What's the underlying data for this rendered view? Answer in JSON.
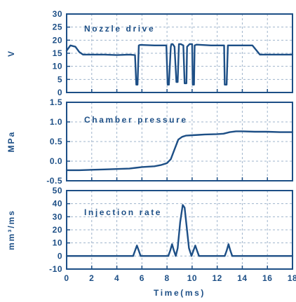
{
  "chart_data": [
    {
      "type": "line",
      "annotation": "Nozzle drive",
      "ylabel": "V",
      "xlabel": "",
      "xlim": [
        0,
        18
      ],
      "ylim": [
        0,
        30
      ],
      "yticks": [
        0,
        5,
        10,
        15,
        20,
        25,
        30
      ],
      "grid": true,
      "series": [
        {
          "x": [
            0,
            0.3,
            0.7,
            1.0,
            1.3,
            2.0,
            3.0,
            4.0,
            5.0,
            5.45,
            5.55,
            5.65,
            5.75,
            5.85,
            7.0,
            7.95,
            8.05,
            8.15,
            8.3,
            8.35,
            8.45,
            8.6,
            8.75,
            8.85,
            8.95,
            9.1,
            9.3,
            9.4,
            9.55,
            9.6,
            9.8,
            10.0,
            10.05,
            10.15,
            10.2,
            10.35,
            11.5,
            12.55,
            12.6,
            12.75,
            12.85,
            12.9,
            13.05,
            14.0,
            14.8,
            15.4,
            16.0,
            17.0,
            18.0
          ],
          "y": [
            16,
            18,
            17.5,
            15.5,
            14.5,
            14.5,
            14.5,
            14.3,
            14.5,
            14.3,
            3,
            3,
            18,
            18.2,
            18,
            18,
            3,
            3,
            17.5,
            18.5,
            18.5,
            17.5,
            4,
            4,
            18.5,
            18.5,
            18,
            3.5,
            3.5,
            17.5,
            18.5,
            18.5,
            3,
            3,
            18,
            18.3,
            18,
            18,
            3,
            3,
            18,
            18,
            18,
            18,
            18,
            14.5,
            14.5,
            14.5,
            14.5
          ]
        }
      ]
    },
    {
      "type": "line",
      "annotation": "Chamber pressure",
      "ylabel": "MPa",
      "xlabel": "",
      "xlim": [
        0,
        18
      ],
      "ylim": [
        -0.5,
        1.5
      ],
      "yticks": [
        -0.5,
        0.0,
        0.5,
        1.0,
        1.5
      ],
      "grid": true,
      "series": [
        {
          "x": [
            0,
            1,
            2,
            3,
            4,
            5,
            5.5,
            6,
            7,
            7.5,
            8,
            8.3,
            8.6,
            8.9,
            9.2,
            9.5,
            10,
            10.5,
            11,
            12,
            12.5,
            13,
            13.5,
            14,
            15,
            16,
            17,
            18
          ],
          "y": [
            -0.23,
            -0.23,
            -0.22,
            -0.21,
            -0.2,
            -0.19,
            -0.17,
            -0.15,
            -0.13,
            -0.1,
            -0.05,
            0.05,
            0.3,
            0.55,
            0.62,
            0.65,
            0.66,
            0.67,
            0.68,
            0.69,
            0.7,
            0.74,
            0.76,
            0.76,
            0.75,
            0.75,
            0.74,
            0.74
          ]
        }
      ]
    },
    {
      "type": "line",
      "annotation": "Injection rate",
      "ylabel": "mm³/ms",
      "xlabel": "Time(ms)",
      "xlim": [
        0,
        18
      ],
      "ylim": [
        -10,
        50
      ],
      "yticks": [
        -10,
        0,
        10,
        20,
        30,
        40,
        50
      ],
      "xticks": [
        0,
        2,
        4,
        6,
        8,
        10,
        12,
        14,
        16,
        18
      ],
      "grid": true,
      "series": [
        {
          "x": [
            0,
            2,
            4,
            5.3,
            5.45,
            5.6,
            5.75,
            5.9,
            7.5,
            8.1,
            8.25,
            8.4,
            8.55,
            8.7,
            8.85,
            9.05,
            9.25,
            9.4,
            9.55,
            9.75,
            9.95,
            10.1,
            10.25,
            10.4,
            10.55,
            12,
            12.6,
            12.75,
            12.9,
            13.05,
            13.2,
            14,
            16,
            18
          ],
          "y": [
            0,
            0,
            0,
            0,
            4,
            8,
            4,
            0,
            0,
            0,
            4,
            9,
            4,
            0,
            6,
            26,
            39,
            37,
            24,
            6,
            0,
            4,
            8,
            4,
            0,
            0,
            0,
            4,
            9,
            4,
            0,
            0,
            0,
            0
          ]
        }
      ]
    }
  ]
}
